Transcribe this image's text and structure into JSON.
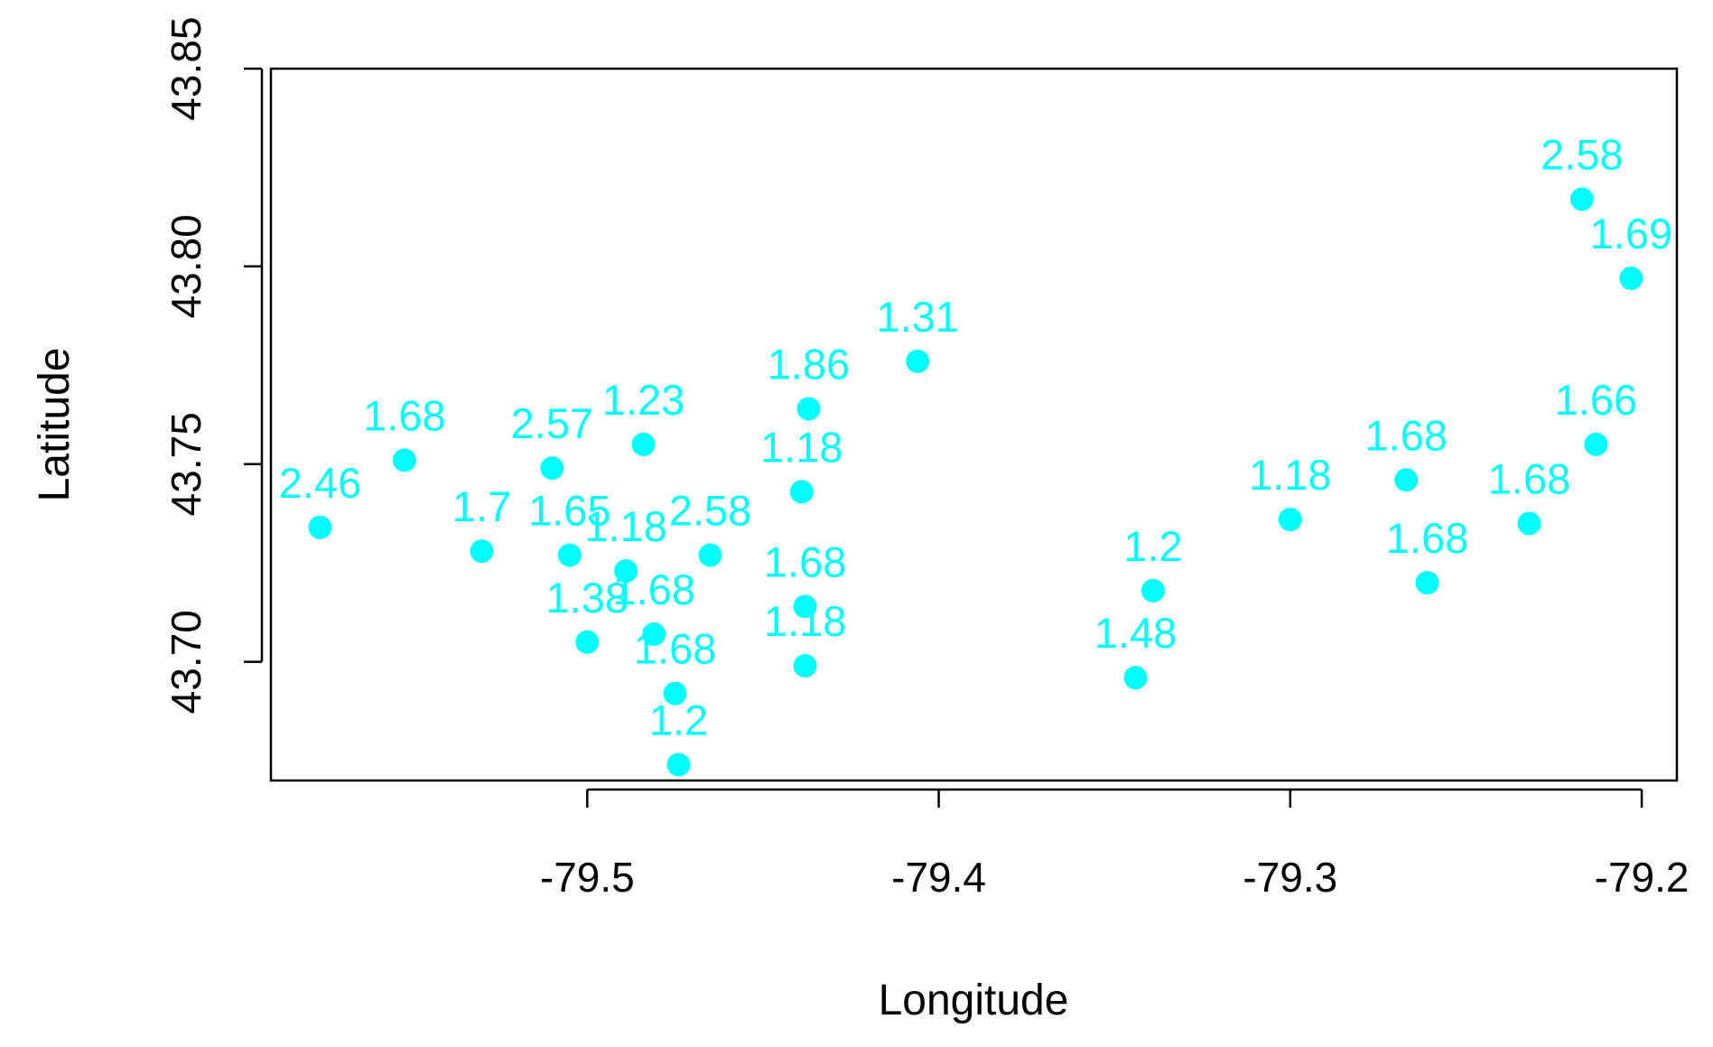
{
  "chart_data": {
    "type": "scatter",
    "title": "",
    "xlabel": "Longitude",
    "ylabel": "Latitude",
    "xlim": [
      -79.59,
      -79.19
    ],
    "ylim": [
      43.67,
      43.85
    ],
    "x_ticks": [
      -79.5,
      -79.4,
      -79.3,
      -79.2
    ],
    "x_tick_labels": [
      "-79.5",
      "-79.4",
      "-79.3",
      "-79.2"
    ],
    "y_ticks": [
      43.7,
      43.75,
      43.8,
      43.85
    ],
    "y_tick_labels": [
      "43.70",
      "43.75",
      "43.80",
      "43.85"
    ],
    "grid": false,
    "legend": "none",
    "color": "#00ffff",
    "points": [
      {
        "x": -79.576,
        "y": 43.734,
        "label": "2.46"
      },
      {
        "x": -79.552,
        "y": 43.751,
        "label": "1.68"
      },
      {
        "x": -79.53,
        "y": 43.728,
        "label": "1.7"
      },
      {
        "x": -79.51,
        "y": 43.749,
        "label": "2.57"
      },
      {
        "x": -79.505,
        "y": 43.727,
        "label": "1.65"
      },
      {
        "x": -79.489,
        "y": 43.723,
        "label": "1.18"
      },
      {
        "x": -79.484,
        "y": 43.755,
        "label": "1.23"
      },
      {
        "x": -79.465,
        "y": 43.727,
        "label": "2.58"
      },
      {
        "x": -79.481,
        "y": 43.707,
        "label": "1.68"
      },
      {
        "x": -79.5,
        "y": 43.705,
        "label": "1.38"
      },
      {
        "x": -79.475,
        "y": 43.692,
        "label": "1.68"
      },
      {
        "x": -79.474,
        "y": 43.674,
        "label": "1.2"
      },
      {
        "x": -79.437,
        "y": 43.764,
        "label": "1.86"
      },
      {
        "x": -79.439,
        "y": 43.743,
        "label": "1.18"
      },
      {
        "x": -79.438,
        "y": 43.714,
        "label": "1.68"
      },
      {
        "x": -79.438,
        "y": 43.699,
        "label": "1.18"
      },
      {
        "x": -79.406,
        "y": 43.776,
        "label": "1.31"
      },
      {
        "x": -79.339,
        "y": 43.718,
        "label": "1.2"
      },
      {
        "x": -79.344,
        "y": 43.696,
        "label": "1.48"
      },
      {
        "x": -79.3,
        "y": 43.736,
        "label": "1.18"
      },
      {
        "x": -79.267,
        "y": 43.746,
        "label": "1.68"
      },
      {
        "x": -79.261,
        "y": 43.72,
        "label": "1.68"
      },
      {
        "x": -79.232,
        "y": 43.735,
        "label": "1.68"
      },
      {
        "x": -79.217,
        "y": 43.817,
        "label": "2.58"
      },
      {
        "x": -79.203,
        "y": 43.797,
        "label": "1.69"
      },
      {
        "x": -79.213,
        "y": 43.755,
        "label": "1.66"
      }
    ]
  }
}
